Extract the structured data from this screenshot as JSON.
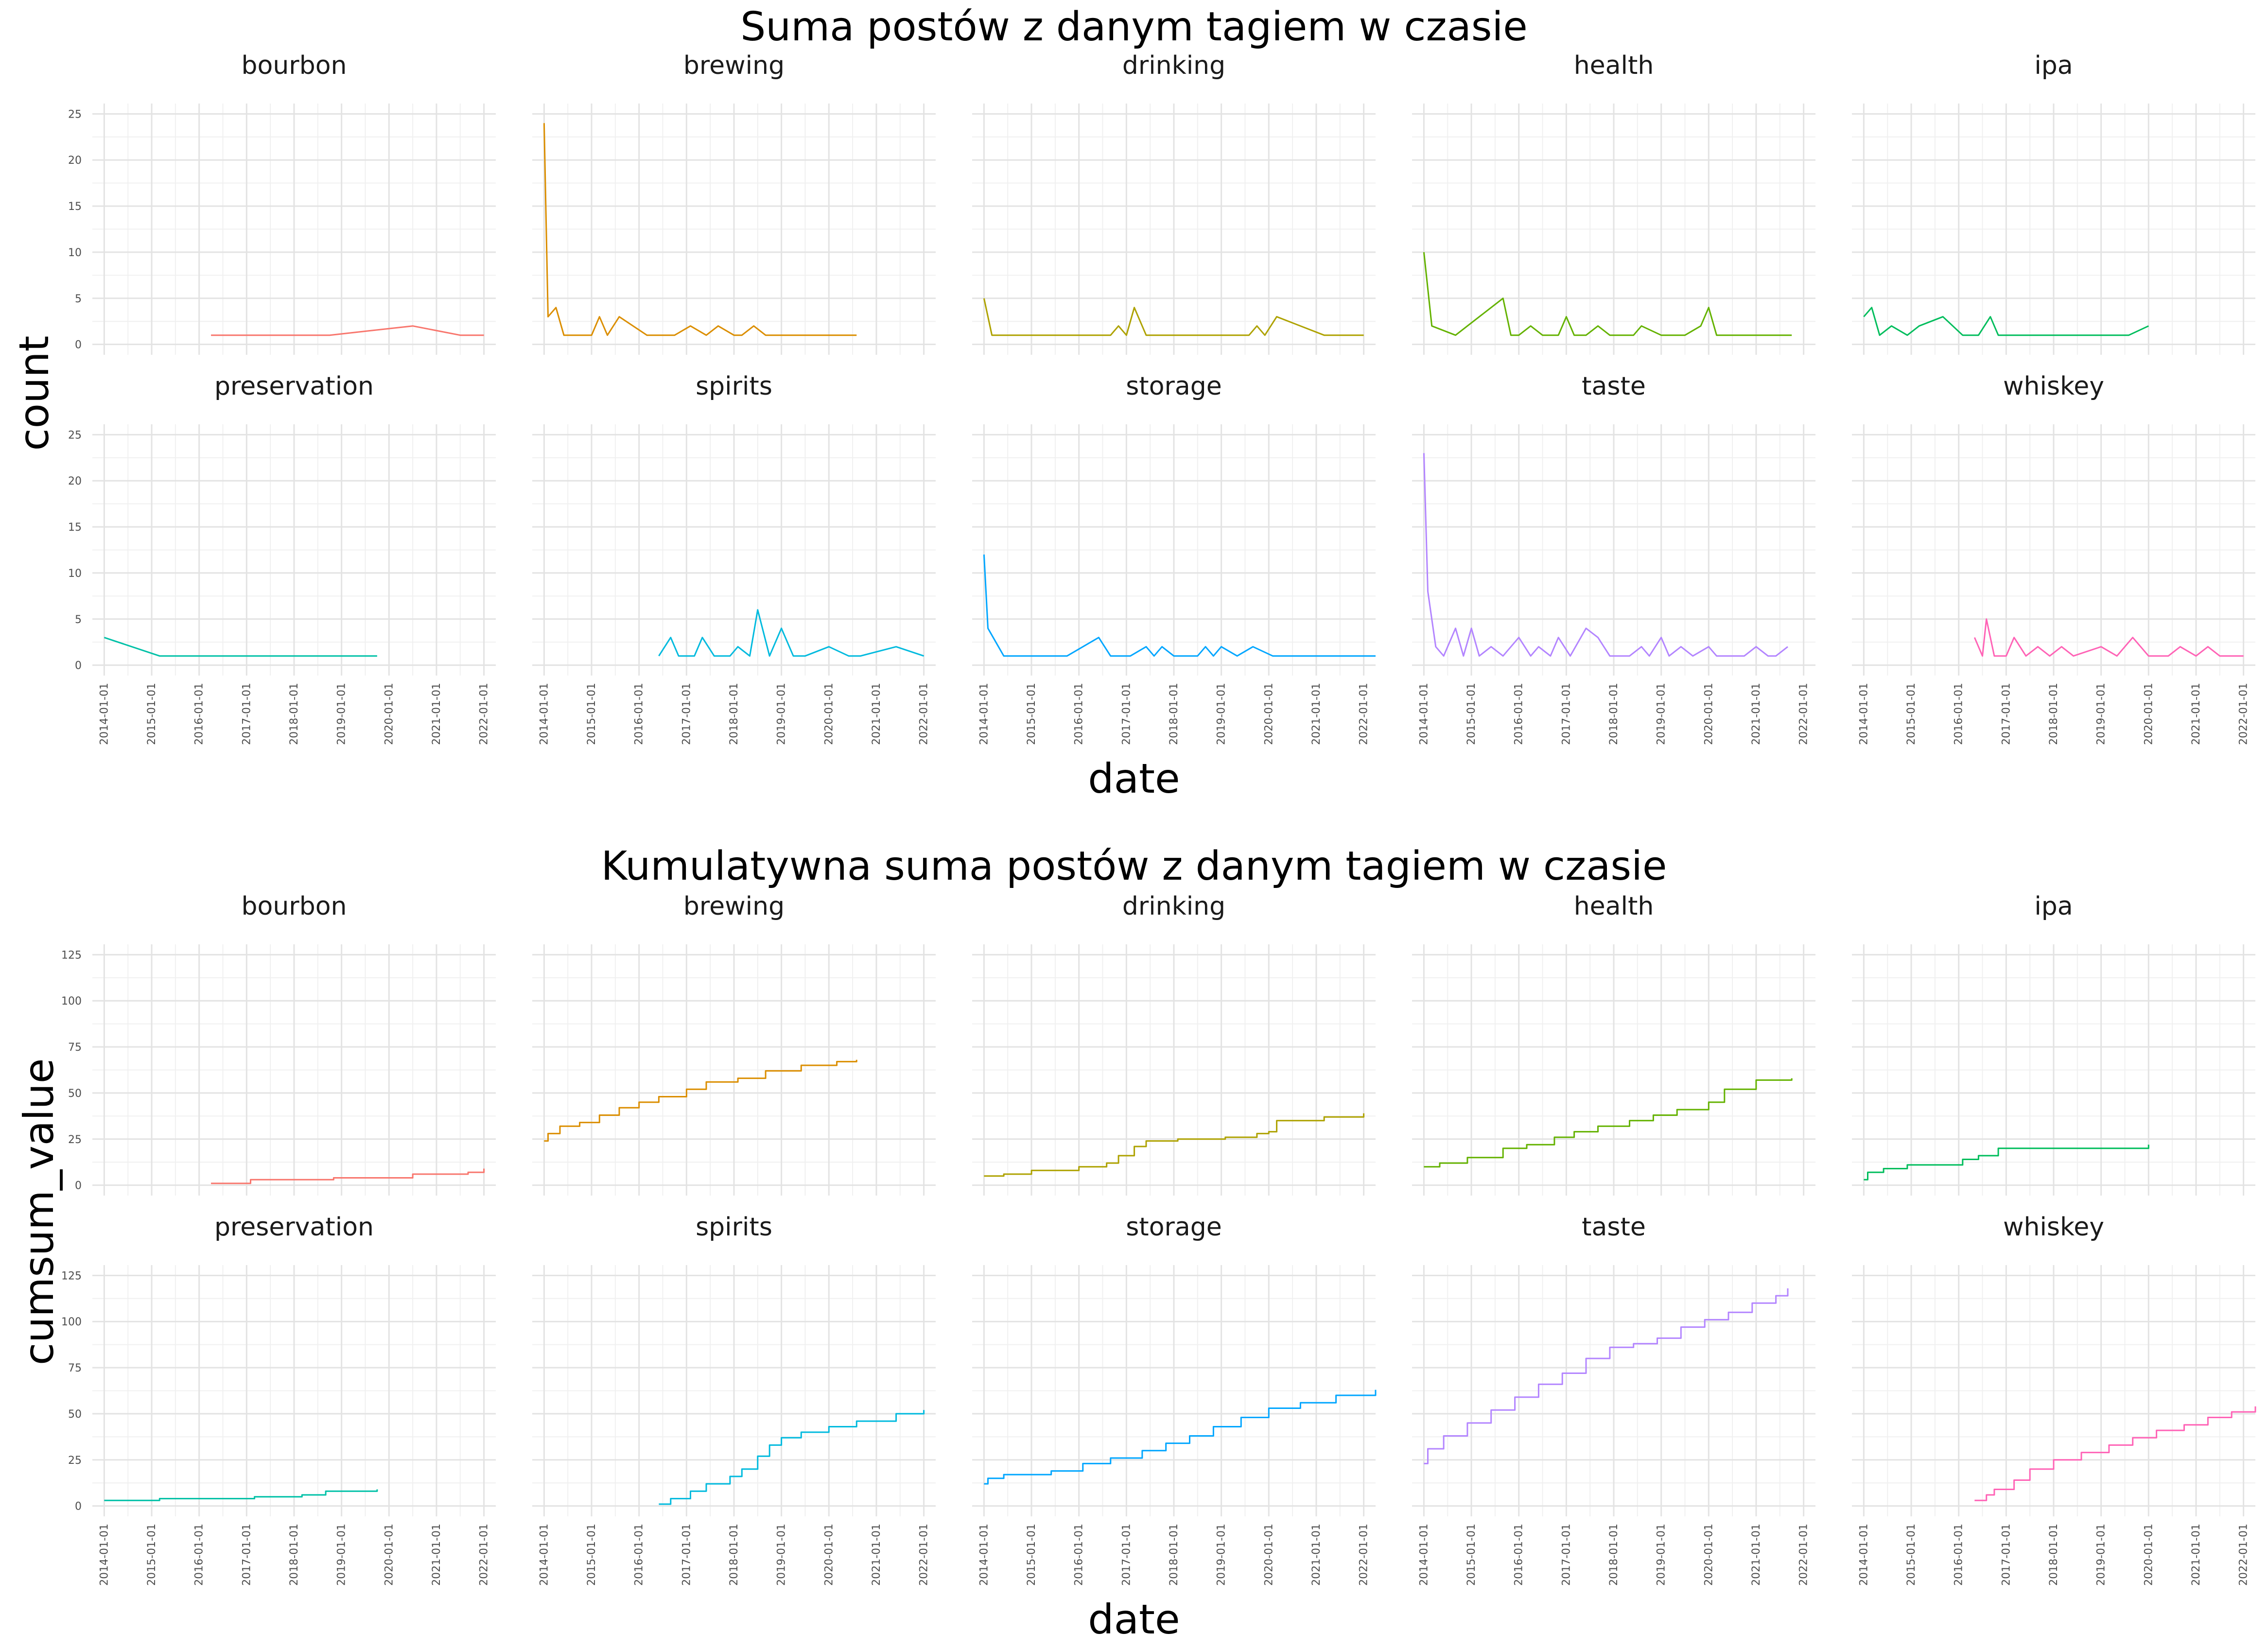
{
  "chart_data": [
    {
      "type": "line",
      "title": "Suma postów z danym tagiem w czasie",
      "xlabel": "date",
      "ylabel": "count",
      "ylim": [
        0,
        25
      ],
      "yticks": [
        "0",
        "5",
        "10",
        "15",
        "20",
        "25"
      ],
      "xticks": [
        "2014-01-01",
        "2015-01-01",
        "2016-01-01",
        "2017-01-01",
        "2018-01-01",
        "2019-01-01",
        "2020-01-01",
        "2021-01-01",
        "2022-01-01"
      ],
      "x_range": [
        "2013-10-01",
        "2022-04-01"
      ],
      "facets": [
        "bourbon",
        "brewing",
        "drinking",
        "health",
        "ipa",
        "preservation",
        "spirits",
        "storage",
        "taste",
        "whiskey"
      ],
      "series": [
        {
          "name": "bourbon",
          "color": "#F8766D",
          "x": [
            "2016-04-01",
            "2018-10-01",
            "2020-07-01",
            "2021-07-01",
            "2022-01-01"
          ],
          "y": [
            1,
            1,
            2,
            1,
            1
          ]
        },
        {
          "name": "brewing",
          "color": "#DB8E00",
          "x": [
            "2014-01-01",
            "2014-02-01",
            "2014-04-01",
            "2014-06-01",
            "2014-10-01",
            "2015-01-01",
            "2015-03-01",
            "2015-05-01",
            "2015-08-01",
            "2016-03-01",
            "2016-07-01",
            "2016-10-01",
            "2017-02-01",
            "2017-06-01",
            "2017-09-01",
            "2018-01-01",
            "2018-03-01",
            "2018-06-01",
            "2018-09-01",
            "2019-01-01",
            "2020-08-01"
          ],
          "y": [
            24,
            3,
            4,
            1,
            1,
            1,
            3,
            1,
            3,
            1,
            1,
            1,
            2,
            1,
            2,
            1,
            1,
            2,
            1,
            1,
            1
          ]
        },
        {
          "name": "drinking",
          "color": "#AEA200",
          "x": [
            "2014-01-01",
            "2014-03-01",
            "2016-09-01",
            "2016-11-01",
            "2017-01-01",
            "2017-03-01",
            "2017-06-01",
            "2019-08-01",
            "2019-10-01",
            "2019-12-01",
            "2020-03-01",
            "2021-03-01",
            "2022-01-01"
          ],
          "y": [
            5,
            1,
            1,
            2,
            1,
            4,
            1,
            1,
            2,
            1,
            3,
            1,
            1
          ]
        },
        {
          "name": "health",
          "color": "#64B200",
          "x": [
            "2014-01-01",
            "2014-03-01",
            "2014-09-01",
            "2014-12-01",
            "2015-09-01",
            "2015-11-01",
            "2016-01-01",
            "2016-04-01",
            "2016-07-01",
            "2016-11-01",
            "2017-01-01",
            "2017-03-01",
            "2017-06-01",
            "2017-09-01",
            "2017-12-01",
            "2018-06-01",
            "2018-08-01",
            "2019-01-01",
            "2019-07-01",
            "2019-11-01",
            "2020-01-01",
            "2020-03-01",
            "2021-10-01"
          ],
          "y": [
            10,
            2,
            1,
            2,
            5,
            1,
            1,
            2,
            1,
            1,
            3,
            1,
            1,
            2,
            1,
            1,
            2,
            1,
            1,
            2,
            4,
            1,
            1
          ]
        },
        {
          "name": "ipa",
          "color": "#00BD5C",
          "x": [
            "2014-01-01",
            "2014-03-01",
            "2014-05-01",
            "2014-08-01",
            "2014-12-01",
            "2015-03-01",
            "2015-09-01",
            "2016-02-01",
            "2016-06-01",
            "2016-09-01",
            "2016-11-01",
            "2019-08-01",
            "2020-01-01"
          ],
          "y": [
            3,
            4,
            1,
            2,
            1,
            2,
            3,
            1,
            1,
            3,
            1,
            1,
            2
          ]
        },
        {
          "name": "preservation",
          "color": "#00C1A7",
          "x": [
            "2014-01-01",
            "2015-03-01",
            "2017-03-01",
            "2019-10-01"
          ],
          "y": [
            3,
            1,
            1,
            1
          ]
        },
        {
          "name": "spirits",
          "color": "#00BADE",
          "x": [
            "2016-06-01",
            "2016-09-01",
            "2016-11-01",
            "2017-03-01",
            "2017-05-01",
            "2017-08-01",
            "2017-12-01",
            "2018-02-01",
            "2018-05-01",
            "2018-07-01",
            "2018-10-01",
            "2019-01-01",
            "2019-04-01",
            "2019-07-01",
            "2020-01-01",
            "2020-06-01",
            "2020-09-01",
            "2021-06-01",
            "2022-01-01"
          ],
          "y": [
            1,
            3,
            1,
            1,
            3,
            1,
            1,
            2,
            1,
            6,
            1,
            4,
            1,
            1,
            2,
            1,
            1,
            2,
            1
          ]
        },
        {
          "name": "storage",
          "color": "#00A6FF",
          "x": [
            "2014-01-01",
            "2014-02-01",
            "2014-06-01",
            "2015-10-01",
            "2016-06-01",
            "2016-09-01",
            "2017-02-01",
            "2017-06-01",
            "2017-08-01",
            "2017-10-01",
            "2018-01-01",
            "2018-07-01",
            "2018-09-01",
            "2018-11-01",
            "2019-01-01",
            "2019-05-01",
            "2019-09-01",
            "2020-02-01",
            "2022-04-01"
          ],
          "y": [
            12,
            4,
            1,
            1,
            3,
            1,
            1,
            2,
            1,
            2,
            1,
            1,
            2,
            1,
            2,
            1,
            2,
            1,
            1
          ]
        },
        {
          "name": "taste",
          "color": "#B385FF",
          "x": [
            "2014-01-01",
            "2014-02-01",
            "2014-04-01",
            "2014-06-01",
            "2014-09-01",
            "2014-11-01",
            "2015-01-01",
            "2015-03-01",
            "2015-06-01",
            "2015-09-01",
            "2016-01-01",
            "2016-04-01",
            "2016-06-01",
            "2016-09-01",
            "2016-11-01",
            "2017-02-01",
            "2017-06-01",
            "2017-09-01",
            "2017-12-01",
            "2018-05-01",
            "2018-08-01",
            "2018-10-01",
            "2019-01-01",
            "2019-03-01",
            "2019-06-01",
            "2019-09-01",
            "2020-01-01",
            "2020-03-01",
            "2020-06-01",
            "2020-10-01",
            "2021-01-01",
            "2021-04-01",
            "2021-06-01",
            "2021-09-01"
          ],
          "y": [
            23,
            8,
            2,
            1,
            4,
            1,
            4,
            1,
            2,
            1,
            3,
            1,
            2,
            1,
            3,
            1,
            4,
            3,
            1,
            1,
            2,
            1,
            3,
            1,
            2,
            1,
            2,
            1,
            1,
            1,
            2,
            1,
            1,
            2
          ]
        },
        {
          "name": "whiskey",
          "color": "#FF63B6",
          "x": [
            "2016-05-01",
            "2016-07-01",
            "2016-08-01",
            "2016-10-01",
            "2017-01-01",
            "2017-03-01",
            "2017-06-01",
            "2017-09-01",
            "2017-12-01",
            "2018-03-01",
            "2018-06-01",
            "2019-01-01",
            "2019-05-01",
            "2019-09-01",
            "2020-01-01",
            "2020-06-01",
            "2020-09-01",
            "2021-01-01",
            "2021-04-01",
            "2021-07-01",
            "2022-01-01"
          ],
          "y": [
            3,
            1,
            5,
            1,
            1,
            3,
            1,
            2,
            1,
            2,
            1,
            2,
            1,
            3,
            1,
            1,
            2,
            1,
            2,
            1,
            1
          ]
        }
      ]
    },
    {
      "type": "line",
      "step": true,
      "title": "Kumulatywna suma postów z danym tagiem w czasie",
      "xlabel": "date",
      "ylabel": "cumsum_value",
      "ylim": [
        0,
        125
      ],
      "yticks": [
        "0",
        "25",
        "50",
        "75",
        "100",
        "125"
      ],
      "xticks": [
        "2014-01-01",
        "2015-01-01",
        "2016-01-01",
        "2017-01-01",
        "2018-01-01",
        "2019-01-01",
        "2020-01-01",
        "2021-01-01",
        "2022-01-01"
      ],
      "x_range": [
        "2013-10-01",
        "2022-04-01"
      ],
      "facets": [
        "bourbon",
        "brewing",
        "drinking",
        "health",
        "ipa",
        "preservation",
        "spirits",
        "storage",
        "taste",
        "whiskey"
      ],
      "series": [
        {
          "name": "bourbon",
          "color": "#F8766D",
          "x": [
            "2016-04-01",
            "2017-02-01",
            "2018-11-01",
            "2020-07-01",
            "2021-09-01",
            "2022-01-01"
          ],
          "y": [
            1,
            3,
            4,
            6,
            7,
            9
          ]
        },
        {
          "name": "brewing",
          "color": "#DB8E00",
          "x": [
            "2014-01-01",
            "2014-02-01",
            "2014-05-01",
            "2014-10-01",
            "2015-03-01",
            "2015-08-01",
            "2016-01-01",
            "2016-06-01",
            "2017-01-01",
            "2017-06-01",
            "2018-02-01",
            "2018-09-01",
            "2019-06-01",
            "2020-03-01",
            "2020-08-01"
          ],
          "y": [
            24,
            28,
            32,
            34,
            38,
            42,
            45,
            48,
            52,
            56,
            58,
            62,
            65,
            67,
            68
          ]
        },
        {
          "name": "drinking",
          "color": "#AEA200",
          "x": [
            "2014-01-01",
            "2014-06-01",
            "2015-01-01",
            "2016-01-01",
            "2016-08-01",
            "2016-11-01",
            "2017-03-01",
            "2017-06-01",
            "2018-02-01",
            "2019-02-01",
            "2019-10-01",
            "2020-01-01",
            "2020-03-01",
            "2021-03-01",
            "2022-01-01"
          ],
          "y": [
            5,
            6,
            8,
            10,
            12,
            16,
            21,
            24,
            25,
            26,
            28,
            29,
            35,
            37,
            39
          ]
        },
        {
          "name": "health",
          "color": "#64B200",
          "x": [
            "2014-01-01",
            "2014-05-01",
            "2014-12-01",
            "2015-09-01",
            "2016-03-01",
            "2016-10-01",
            "2017-03-01",
            "2017-09-01",
            "2018-05-01",
            "2018-11-01",
            "2019-05-01",
            "2020-01-01",
            "2020-05-01",
            "2021-01-01",
            "2021-10-01"
          ],
          "y": [
            10,
            12,
            15,
            20,
            22,
            26,
            29,
            32,
            35,
            38,
            41,
            45,
            52,
            57,
            58
          ]
        },
        {
          "name": "ipa",
          "color": "#00BD5C",
          "x": [
            "2014-01-01",
            "2014-02-01",
            "2014-06-01",
            "2014-12-01",
            "2015-09-01",
            "2016-02-01",
            "2016-06-01",
            "2016-11-01",
            "2019-08-01",
            "2020-01-01"
          ],
          "y": [
            3,
            7,
            9,
            11,
            11,
            14,
            16,
            20,
            20,
            22
          ]
        },
        {
          "name": "preservation",
          "color": "#00C1A7",
          "x": [
            "2014-01-01",
            "2015-03-01",
            "2016-06-01",
            "2017-03-01",
            "2018-03-01",
            "2018-09-01",
            "2019-10-01"
          ],
          "y": [
            3,
            4,
            4,
            5,
            6,
            8,
            9
          ]
        },
        {
          "name": "spirits",
          "color": "#00BADE",
          "x": [
            "2016-06-01",
            "2016-09-01",
            "2017-02-01",
            "2017-06-01",
            "2017-12-01",
            "2018-03-01",
            "2018-07-01",
            "2018-10-01",
            "2019-01-01",
            "2019-06-01",
            "2020-01-01",
            "2020-08-01",
            "2021-06-01",
            "2022-01-01"
          ],
          "y": [
            1,
            4,
            8,
            12,
            16,
            20,
            27,
            33,
            37,
            40,
            43,
            46,
            50,
            52
          ]
        },
        {
          "name": "storage",
          "color": "#00A6FF",
          "x": [
            "2014-01-01",
            "2014-02-01",
            "2014-06-01",
            "2015-06-01",
            "2016-02-01",
            "2016-09-01",
            "2017-05-01",
            "2017-11-01",
            "2018-05-01",
            "2018-11-01",
            "2019-06-01",
            "2020-01-01",
            "2020-09-01",
            "2021-06-01",
            "2022-04-01"
          ],
          "y": [
            12,
            15,
            17,
            19,
            23,
            26,
            30,
            34,
            38,
            43,
            48,
            53,
            56,
            60,
            63
          ]
        },
        {
          "name": "taste",
          "color": "#B385FF",
          "x": [
            "2014-01-01",
            "2014-02-01",
            "2014-06-01",
            "2014-12-01",
            "2015-06-01",
            "2015-12-01",
            "2016-06-01",
            "2016-12-01",
            "2017-06-01",
            "2017-12-01",
            "2018-06-01",
            "2018-12-01",
            "2019-06-01",
            "2019-12-01",
            "2020-06-01",
            "2020-12-01",
            "2021-06-01",
            "2021-09-01"
          ],
          "y": [
            23,
            31,
            38,
            45,
            52,
            59,
            66,
            72,
            80,
            86,
            88,
            91,
            97,
            101,
            105,
            110,
            114,
            118
          ]
        },
        {
          "name": "whiskey",
          "color": "#FF63B6",
          "x": [
            "2016-05-01",
            "2016-08-01",
            "2016-10-01",
            "2017-03-01",
            "2017-07-01",
            "2018-01-01",
            "2018-08-01",
            "2019-03-01",
            "2019-09-01",
            "2020-03-01",
            "2020-10-01",
            "2021-04-01",
            "2021-10-01",
            "2022-04-01"
          ],
          "y": [
            3,
            6,
            9,
            14,
            20,
            25,
            29,
            33,
            37,
            41,
            44,
            48,
            51,
            54
          ]
        }
      ]
    }
  ]
}
